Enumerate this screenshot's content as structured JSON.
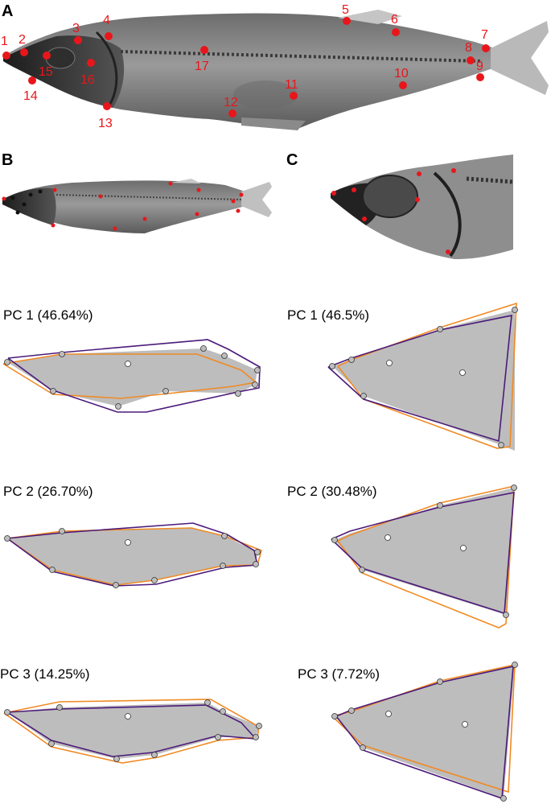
{
  "panels": {
    "a": "A",
    "b": "B",
    "c": "C"
  },
  "landmark_numbers": [
    "1",
    "2",
    "3",
    "4",
    "5",
    "6",
    "7",
    "8",
    "9",
    "10",
    "11",
    "12",
    "13",
    "14",
    "15",
    "16",
    "17"
  ],
  "pc_labels": {
    "left": [
      "PC 1 (46.64%)",
      "PC 2 (26.70%)",
      "PC 3 (14.25%)"
    ],
    "right": [
      "PC 1 (46.5%)",
      "PC 2 (30.48%)",
      "PC 3 (7.72%)"
    ]
  },
  "colors": {
    "landmark": "#e8161b",
    "outline_purple": "#4b1a7a",
    "outline_orange": "#f08a24",
    "mean_fill": "#bdbdbd",
    "xray_dark": "#2a2a2a"
  }
}
